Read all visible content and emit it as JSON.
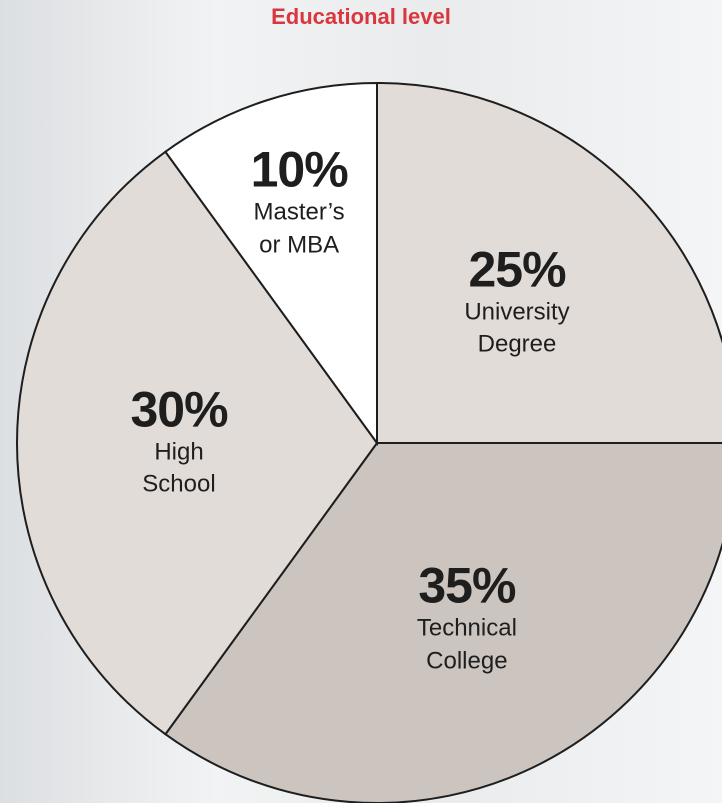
{
  "chart_data": {
    "type": "pie",
    "title": "Educational level",
    "categories": [
      "University Degree",
      "Technical College",
      "High School",
      "Master’s or MBA"
    ],
    "values": [
      25,
      35,
      30,
      10
    ],
    "value_labels": [
      "25%",
      "35%",
      "30%",
      "10%"
    ],
    "colors": [
      "#e2dcd8",
      "#cbc4bf",
      "#e2dcd8",
      "#ffffff"
    ]
  }
}
